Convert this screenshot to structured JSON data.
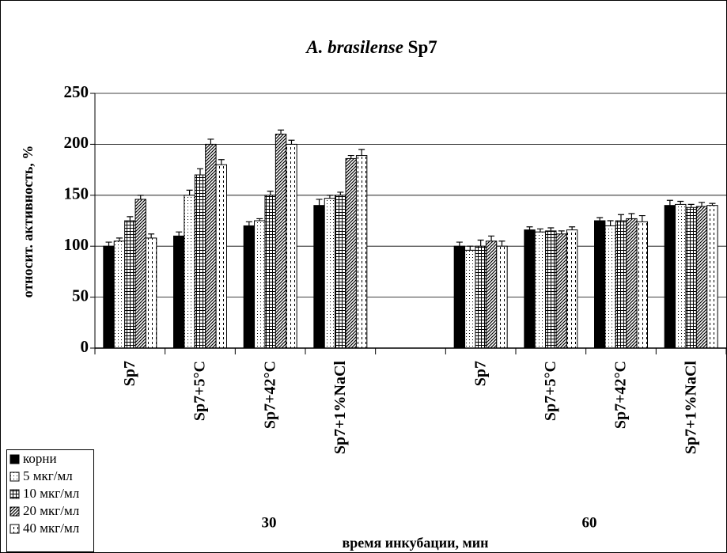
{
  "chart_data": {
    "type": "bar",
    "title": [
      "A. brasilense",
      "Sp7"
    ],
    "ylabel": "относит. активность, %",
    "xlabel": "время инкубации, мин",
    "annotations": [
      "30",
      "60"
    ],
    "categories": [
      "Sp7",
      "Sp7+5°C",
      "Sp7+42°C",
      "Sp7+1%NaCl",
      null,
      "Sp7",
      "Sp7+5°C",
      "Sp7+42°C",
      "Sp7+1%NaCl"
    ],
    "ylim": [
      0,
      250
    ],
    "yticks": [
      0,
      50,
      100,
      150,
      200,
      250
    ],
    "grid": true,
    "legend": "bottom-left",
    "series": [
      {
        "name": "корни",
        "color": "#000000",
        "pattern": "solid",
        "values": [
          100,
          110,
          120,
          140,
          null,
          100,
          116,
          125,
          140
        ],
        "errors": [
          4,
          4,
          4,
          6,
          null,
          4,
          3,
          3,
          5
        ]
      },
      {
        "name": "5 мкг/мл",
        "color": "#000000",
        "pattern": "dots",
        "values": [
          105,
          150,
          125,
          147,
          null,
          96,
          114,
          120,
          141
        ],
        "errors": [
          3,
          5,
          2,
          3,
          null,
          4,
          3,
          5,
          3
        ]
      },
      {
        "name": "10 мкг/мл",
        "color": "#000000",
        "pattern": "grid",
        "values": [
          125,
          170,
          150,
          150,
          null,
          100,
          115,
          125,
          138
        ],
        "errors": [
          4,
          6,
          4,
          3,
          null,
          6,
          3,
          6,
          3
        ]
      },
      {
        "name": "20 мкг/мл",
        "color": "#000000",
        "pattern": "diagonal",
        "values": [
          146,
          200,
          210,
          186,
          null,
          105,
          112,
          127,
          139
        ],
        "errors": [
          4,
          5,
          4,
          3,
          null,
          5,
          3,
          5,
          4
        ]
      },
      {
        "name": "40 мкг/мл",
        "color": "#000000",
        "pattern": "dashes",
        "values": [
          108,
          180,
          200,
          189,
          null,
          100,
          116,
          124,
          140
        ],
        "errors": [
          4,
          5,
          4,
          6,
          null,
          5,
          3,
          6,
          2
        ]
      }
    ]
  }
}
